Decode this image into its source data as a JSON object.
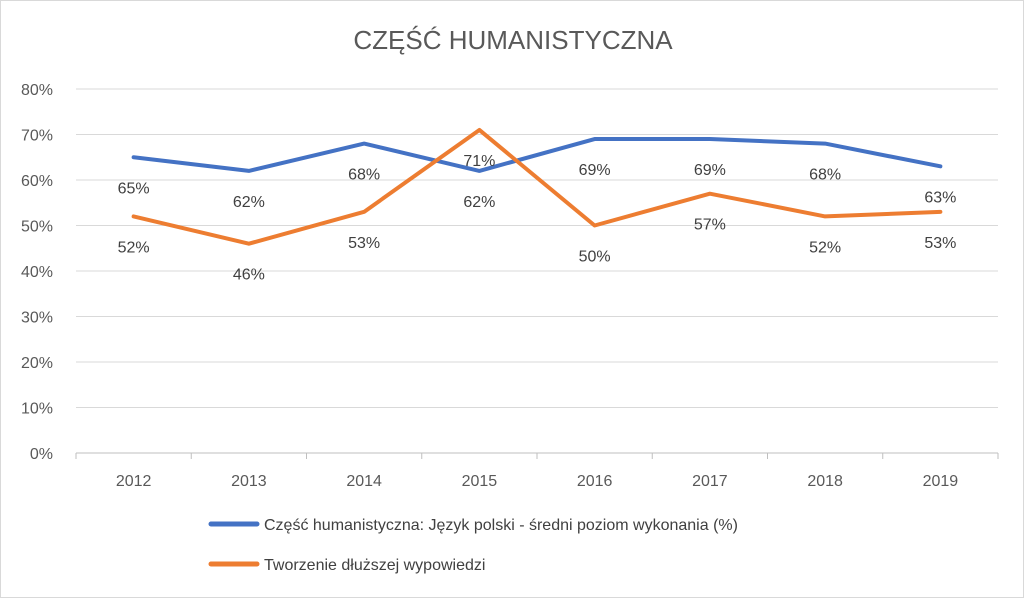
{
  "chart_data": {
    "type": "line",
    "title": "CZĘŚĆ HUMANISTYCZNA",
    "xlabel": "",
    "ylabel": "",
    "categories": [
      "2012",
      "2013",
      "2014",
      "2015",
      "2016",
      "2017",
      "2018",
      "2019"
    ],
    "ylim": [
      0,
      80
    ],
    "yticks": [
      "0%",
      "10%",
      "20%",
      "30%",
      "40%",
      "50%",
      "60%",
      "70%",
      "80%"
    ],
    "grid": true,
    "legend_position": "bottom",
    "series": [
      {
        "name": "Część humanistyczna: Język polski - średni poziom wykonania (%)",
        "color": "#4472c4",
        "values": [
          65,
          62,
          68,
          62,
          69,
          69,
          68,
          63
        ],
        "labels": [
          "65%",
          "62%",
          "68%",
          "62%",
          "69%",
          "69%",
          "68%",
          "63%"
        ]
      },
      {
        "name": "Tworzenie dłuższej wypowiedzi",
        "color": "#ed7d31",
        "values": [
          52,
          46,
          53,
          71,
          50,
          57,
          52,
          53
        ],
        "labels": [
          "52%",
          "46%",
          "53%",
          "71%",
          "50%",
          "57%",
          "52%",
          "53%"
        ]
      }
    ]
  }
}
